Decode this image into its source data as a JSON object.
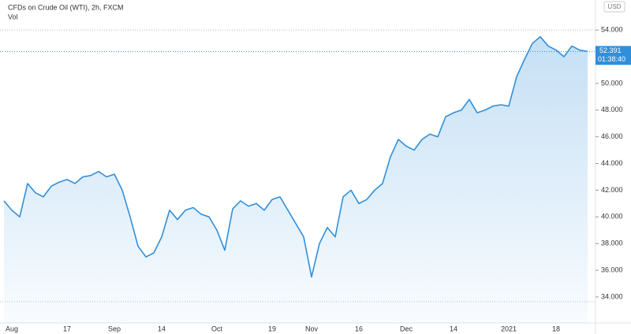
{
  "chart_data": {
    "type": "area",
    "title": "CFDs on Crude Oil (WTI), 2h, FXCM",
    "subtitle": "Vol",
    "currency": "USD",
    "color": "#2f8fdb",
    "categories": [
      null,
      "Aug",
      null,
      null,
      null,
      null,
      null,
      null,
      "17",
      null,
      null,
      null,
      null,
      null,
      "Sep",
      null,
      null,
      null,
      null,
      null,
      "14",
      null,
      null,
      null,
      null,
      null,
      null,
      "Oct",
      null,
      null,
      null,
      null,
      null,
      null,
      "19",
      null,
      null,
      null,
      null,
      "Nov",
      null,
      null,
      null,
      null,
      null,
      "16",
      null,
      null,
      null,
      null,
      null,
      "Dec",
      null,
      null,
      null,
      null,
      null,
      "14",
      null,
      null,
      null,
      null,
      null,
      null,
      "2021",
      null,
      null,
      null,
      null,
      null,
      "18",
      null,
      null,
      null,
      null
    ],
    "values": [
      41.2,
      40.5,
      40.0,
      42.5,
      41.8,
      41.5,
      42.3,
      42.6,
      42.8,
      42.5,
      43.0,
      43.1,
      43.4,
      43.0,
      43.2,
      42.0,
      40.0,
      37.8,
      37.0,
      37.3,
      38.5,
      40.5,
      39.8,
      40.5,
      40.7,
      40.2,
      40.0,
      39.0,
      37.5,
      40.6,
      41.2,
      40.8,
      41.0,
      40.5,
      41.3,
      41.5,
      40.5,
      39.5,
      38.5,
      35.5,
      38.0,
      39.2,
      38.5,
      41.5,
      42.0,
      41.0,
      41.3,
      42.0,
      42.5,
      44.5,
      45.8,
      45.3,
      45.0,
      45.8,
      46.2,
      46.0,
      47.5,
      47.8,
      48.0,
      48.8,
      47.8,
      48.0,
      48.3,
      48.4,
      48.3,
      50.5,
      51.8,
      53.0,
      53.5,
      52.8,
      52.5,
      52.0,
      52.8,
      52.5,
      52.4
    ],
    "last_price": 52.391,
    "countdown": "01:38:40",
    "ylim": [
      32.05,
      56.25
    ],
    "yticks": [
      {
        "value": 34,
        "label": "34.000"
      },
      {
        "value": 36,
        "label": "36.000"
      },
      {
        "value": 38,
        "label": "38.000"
      },
      {
        "value": 40,
        "label": "40.000"
      },
      {
        "value": 42,
        "label": "42.000"
      },
      {
        "value": 44,
        "label": "44.000"
      },
      {
        "value": 46,
        "label": "46.000"
      },
      {
        "value": 48,
        "label": "48.000"
      },
      {
        "value": 50,
        "label": "50.000"
      },
      {
        "value": 52,
        "label": "52.000"
      },
      {
        "value": 54,
        "label": "54.000"
      }
    ],
    "grid": false
  }
}
